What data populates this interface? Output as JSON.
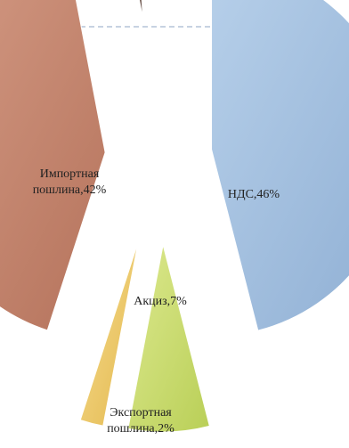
{
  "chart_data": {
    "type": "pie",
    "exploded": true,
    "slices": [
      {
        "label": "НДС,46%",
        "value": 46,
        "color": "#9fbfdf"
      },
      {
        "label": "Акциз,7%",
        "value": 7,
        "color": "#cfe07a"
      },
      {
        "label": "Экспортная пошлина,2%",
        "value": 2,
        "color": "#f2cf73"
      },
      {
        "label": "Импортная пошлина,42%",
        "value": 42,
        "color": "#c98a72"
      },
      {
        "label": "",
        "value": 2,
        "color": "#7a5f55"
      },
      {
        "label": "",
        "value": 1,
        "color": "#5f78a8"
      }
    ]
  }
}
